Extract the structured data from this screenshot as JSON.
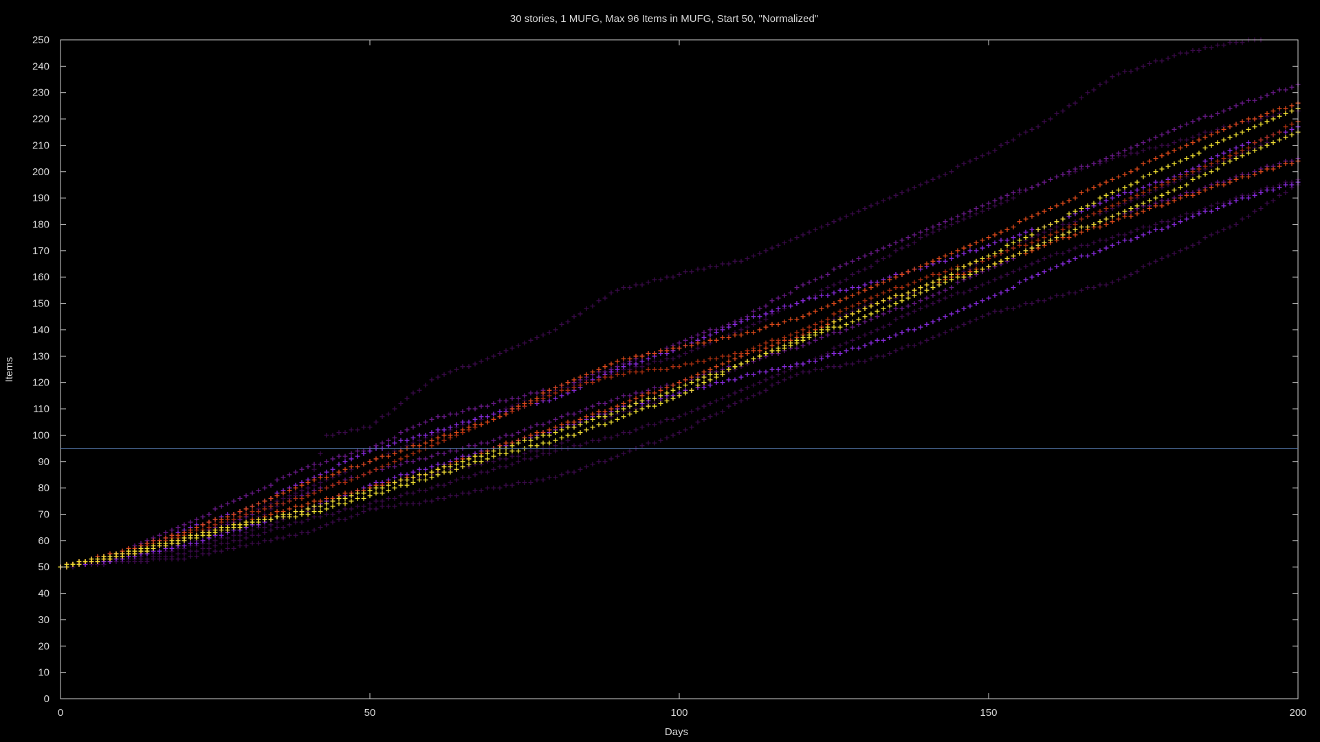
{
  "chart_data": {
    "type": "scatter",
    "title": "30 stories, 1 MUFG, Max 96 Items in MUFG, Start 50, \"Normalized\"",
    "xlabel": "Days",
    "ylabel": "Items",
    "xlim": [
      0,
      200
    ],
    "ylim": [
      0,
      250
    ],
    "xticks": [
      0,
      50,
      100,
      150,
      200
    ],
    "yticks": [
      0,
      10,
      20,
      30,
      40,
      50,
      60,
      70,
      80,
      90,
      100,
      110,
      120,
      130,
      140,
      150,
      160,
      170,
      180,
      190,
      200,
      210,
      220,
      230,
      240,
      250
    ],
    "grid": false,
    "legend": "none",
    "point_marker": "+",
    "hline": {
      "y": 95,
      "color": "#5577aa"
    },
    "palette": [
      "#3a0a4a",
      "#6a1a8a",
      "#8a2be2",
      "#b03010",
      "#e04a1a",
      "#f0e030"
    ],
    "series": [
      {
        "color": "#3a0a4a",
        "points": [
          [
            0,
            50
          ],
          [
            10,
            53
          ],
          [
            20,
            58
          ],
          [
            30,
            66
          ],
          [
            40,
            80
          ],
          [
            43,
            100
          ],
          [
            50,
            103
          ],
          [
            60,
            121
          ],
          [
            70,
            130
          ],
          [
            80,
            140
          ],
          [
            90,
            155
          ],
          [
            100,
            161
          ],
          [
            110,
            166
          ],
          [
            120,
            176
          ],
          [
            130,
            186
          ],
          [
            140,
            196
          ],
          [
            150,
            207
          ],
          [
            160,
            220
          ],
          [
            170,
            236
          ],
          [
            180,
            244
          ],
          [
            190,
            249
          ],
          [
            200,
            252
          ]
        ]
      },
      {
        "color": "#3a0a4a",
        "points": [
          [
            0,
            50
          ],
          [
            10,
            52
          ],
          [
            20,
            53
          ],
          [
            30,
            58
          ],
          [
            40,
            63
          ],
          [
            50,
            72
          ],
          [
            60,
            75
          ],
          [
            70,
            80
          ],
          [
            80,
            84
          ],
          [
            90,
            92
          ],
          [
            100,
            101
          ],
          [
            110,
            113
          ],
          [
            120,
            124
          ],
          [
            130,
            128
          ],
          [
            140,
            136
          ],
          [
            150,
            146
          ],
          [
            160,
            152
          ],
          [
            170,
            158
          ],
          [
            180,
            169
          ],
          [
            190,
            180
          ],
          [
            200,
            195
          ]
        ]
      },
      {
        "color": "#3a0a4a",
        "points": [
          [
            0,
            50
          ],
          [
            10,
            53
          ],
          [
            20,
            57
          ],
          [
            30,
            63
          ],
          [
            40,
            71
          ],
          [
            50,
            80
          ],
          [
            60,
            85
          ],
          [
            70,
            90
          ],
          [
            80,
            96
          ],
          [
            90,
            108
          ],
          [
            100,
            115
          ],
          [
            110,
            126
          ],
          [
            120,
            138
          ],
          [
            130,
            149
          ],
          [
            140,
            155
          ],
          [
            150,
            167
          ],
          [
            160,
            178
          ],
          [
            170,
            186
          ],
          [
            180,
            196
          ],
          [
            190,
            206
          ],
          [
            200,
            215
          ]
        ]
      },
      {
        "color": "#3a0a4a",
        "points": [
          [
            0,
            50
          ],
          [
            10,
            54
          ],
          [
            20,
            60
          ],
          [
            30,
            70
          ],
          [
            40,
            80
          ],
          [
            50,
            90
          ],
          [
            60,
            100
          ],
          [
            70,
            108
          ],
          [
            80,
            117
          ],
          [
            90,
            124
          ],
          [
            100,
            130
          ],
          [
            110,
            140
          ],
          [
            120,
            151
          ],
          [
            130,
            163
          ],
          [
            140,
            176
          ],
          [
            150,
            186
          ],
          [
            160,
            197
          ],
          [
            170,
            205
          ],
          [
            180,
            211
          ],
          [
            190,
            218
          ],
          [
            200,
            223
          ]
        ]
      },
      {
        "color": "#3a0a4a",
        "points": [
          [
            0,
            50
          ],
          [
            10,
            52
          ],
          [
            20,
            55
          ],
          [
            30,
            61
          ],
          [
            40,
            68
          ],
          [
            50,
            74
          ],
          [
            60,
            80
          ],
          [
            70,
            87
          ],
          [
            80,
            94
          ],
          [
            90,
            100
          ],
          [
            100,
            107
          ],
          [
            110,
            117
          ],
          [
            120,
            127
          ],
          [
            130,
            138
          ],
          [
            140,
            149
          ],
          [
            150,
            158
          ],
          [
            160,
            168
          ],
          [
            170,
            175
          ],
          [
            180,
            182
          ],
          [
            190,
            190
          ],
          [
            200,
            197
          ]
        ]
      },
      {
        "color": "#6a1a8a",
        "points": [
          [
            0,
            50
          ],
          [
            10,
            56
          ],
          [
            20,
            66
          ],
          [
            30,
            77
          ],
          [
            40,
            88
          ],
          [
            50,
            95
          ],
          [
            60,
            106
          ],
          [
            70,
            112
          ],
          [
            80,
            118
          ],
          [
            90,
            126
          ],
          [
            100,
            135
          ],
          [
            110,
            144
          ],
          [
            120,
            157
          ],
          [
            130,
            168
          ],
          [
            140,
            178
          ],
          [
            150,
            188
          ],
          [
            160,
            197
          ],
          [
            170,
            206
          ],
          [
            180,
            216
          ],
          [
            190,
            225
          ],
          [
            200,
            233
          ]
        ]
      },
      {
        "color": "#6a1a8a",
        "points": [
          [
            0,
            50
          ],
          [
            10,
            54
          ],
          [
            20,
            60
          ],
          [
            30,
            69
          ],
          [
            40,
            78
          ],
          [
            50,
            86
          ],
          [
            60,
            92
          ],
          [
            70,
            98
          ],
          [
            80,
            106
          ],
          [
            90,
            114
          ],
          [
            100,
            120
          ],
          [
            110,
            127
          ],
          [
            120,
            134
          ],
          [
            130,
            143
          ],
          [
            140,
            152
          ],
          [
            150,
            163
          ],
          [
            160,
            174
          ],
          [
            170,
            183
          ],
          [
            180,
            190
          ],
          [
            190,
            198
          ],
          [
            200,
            205
          ]
        ]
      },
      {
        "color": "#8a2be2",
        "points": [
          [
            0,
            50
          ],
          [
            10,
            55
          ],
          [
            20,
            64
          ],
          [
            30,
            72
          ],
          [
            40,
            83
          ],
          [
            50,
            94
          ],
          [
            60,
            101
          ],
          [
            70,
            108
          ],
          [
            80,
            114
          ],
          [
            90,
            125
          ],
          [
            100,
            133
          ],
          [
            110,
            143
          ],
          [
            120,
            151
          ],
          [
            130,
            157
          ],
          [
            140,
            164
          ],
          [
            150,
            172
          ],
          [
            160,
            180
          ],
          [
            170,
            190
          ],
          [
            180,
            198
          ],
          [
            190,
            209
          ],
          [
            200,
            217
          ]
        ]
      },
      {
        "color": "#8a2be2",
        "points": [
          [
            0,
            50
          ],
          [
            10,
            53
          ],
          [
            20,
            58
          ],
          [
            30,
            65
          ],
          [
            40,
            72
          ],
          [
            50,
            81
          ],
          [
            60,
            88
          ],
          [
            70,
            95
          ],
          [
            80,
            102
          ],
          [
            90,
            110
          ],
          [
            100,
            116
          ],
          [
            110,
            122
          ],
          [
            120,
            127
          ],
          [
            130,
            134
          ],
          [
            140,
            142
          ],
          [
            150,
            152
          ],
          [
            160,
            163
          ],
          [
            170,
            172
          ],
          [
            180,
            180
          ],
          [
            190,
            189
          ],
          [
            200,
            196
          ]
        ]
      },
      {
        "color": "#b03010",
        "points": [
          [
            0,
            50
          ],
          [
            10,
            55
          ],
          [
            20,
            62
          ],
          [
            30,
            70
          ],
          [
            40,
            77
          ],
          [
            50,
            86
          ],
          [
            60,
            96
          ],
          [
            70,
            106
          ],
          [
            80,
            116
          ],
          [
            90,
            123
          ],
          [
            100,
            126
          ],
          [
            110,
            131
          ],
          [
            120,
            140
          ],
          [
            130,
            151
          ],
          [
            140,
            160
          ],
          [
            150,
            167
          ],
          [
            160,
            176
          ],
          [
            170,
            187
          ],
          [
            180,
            197
          ],
          [
            190,
            207
          ],
          [
            200,
            219
          ]
        ]
      },
      {
        "color": "#e04a1a",
        "points": [
          [
            0,
            50
          ],
          [
            10,
            56
          ],
          [
            20,
            63
          ],
          [
            30,
            72
          ],
          [
            40,
            82
          ],
          [
            50,
            90
          ],
          [
            60,
            98
          ],
          [
            70,
            106
          ],
          [
            80,
            118
          ],
          [
            90,
            128
          ],
          [
            100,
            133
          ],
          [
            110,
            138
          ],
          [
            120,
            145
          ],
          [
            130,
            155
          ],
          [
            140,
            165
          ],
          [
            150,
            175
          ],
          [
            160,
            186
          ],
          [
            170,
            197
          ],
          [
            180,
            208
          ],
          [
            190,
            218
          ],
          [
            200,
            226
          ]
        ]
      },
      {
        "color": "#e04a1a",
        "points": [
          [
            0,
            50
          ],
          [
            10,
            54
          ],
          [
            20,
            61
          ],
          [
            30,
            67
          ],
          [
            40,
            74
          ],
          [
            50,
            80
          ],
          [
            60,
            86
          ],
          [
            70,
            95
          ],
          [
            80,
            103
          ],
          [
            90,
            111
          ],
          [
            100,
            120
          ],
          [
            110,
            130
          ],
          [
            120,
            138
          ],
          [
            130,
            148
          ],
          [
            140,
            157
          ],
          [
            150,
            164
          ],
          [
            160,
            173
          ],
          [
            170,
            181
          ],
          [
            180,
            189
          ],
          [
            190,
            197
          ],
          [
            200,
            204
          ]
        ]
      },
      {
        "color": "#f0e030",
        "points": [
          [
            0,
            50
          ],
          [
            10,
            55
          ],
          [
            20,
            61
          ],
          [
            30,
            67
          ],
          [
            40,
            70
          ],
          [
            50,
            77
          ],
          [
            60,
            84
          ],
          [
            70,
            92
          ],
          [
            80,
            98
          ],
          [
            90,
            106
          ],
          [
            100,
            115
          ],
          [
            110,
            127
          ],
          [
            120,
            137
          ],
          [
            130,
            148
          ],
          [
            140,
            157
          ],
          [
            150,
            168
          ],
          [
            160,
            180
          ],
          [
            170,
            192
          ],
          [
            180,
            203
          ],
          [
            190,
            214
          ],
          [
            200,
            224
          ]
        ]
      },
      {
        "color": "#f0e030",
        "points": [
          [
            0,
            50
          ],
          [
            10,
            54
          ],
          [
            20,
            60
          ],
          [
            30,
            66
          ],
          [
            40,
            72
          ],
          [
            50,
            79
          ],
          [
            60,
            86
          ],
          [
            70,
            94
          ],
          [
            80,
            101
          ],
          [
            90,
            109
          ],
          [
            100,
            118
          ],
          [
            110,
            127
          ],
          [
            120,
            136
          ],
          [
            130,
            145
          ],
          [
            140,
            155
          ],
          [
            150,
            164
          ],
          [
            160,
            174
          ],
          [
            170,
            183
          ],
          [
            180,
            193
          ],
          [
            190,
            205
          ],
          [
            200,
            215
          ]
        ]
      }
    ]
  }
}
